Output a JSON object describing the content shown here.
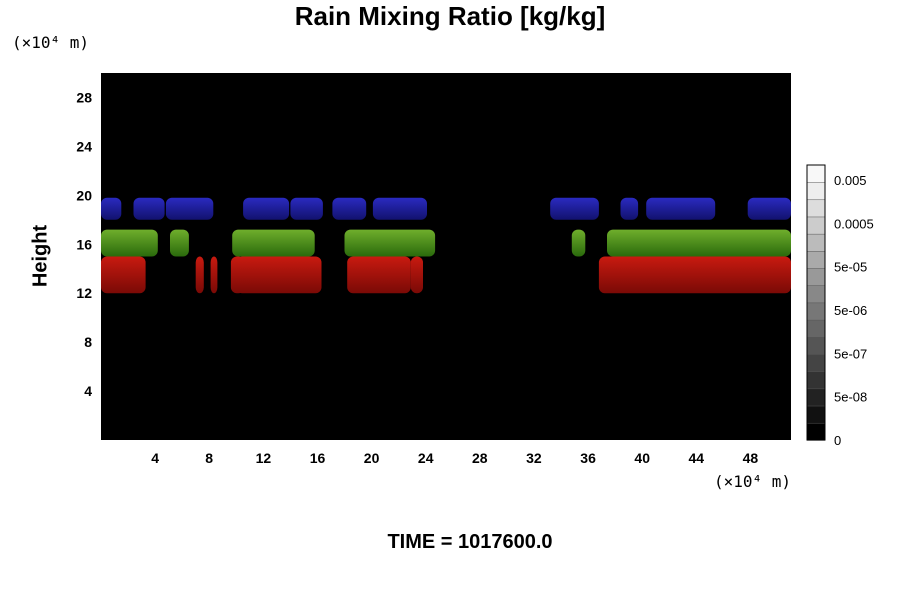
{
  "chart_data": {
    "type": "heatmap",
    "title": "Rain Mixing Ratio [kg/kg]",
    "ylabel": "Height",
    "y_unit": "(×10⁴ m)",
    "x_unit": "(×10⁴ m)",
    "footer": "TIME = 1017600.0",
    "x_ticks": [
      4,
      8,
      12,
      16,
      20,
      24,
      28,
      32,
      36,
      40,
      44,
      48
    ],
    "y_ticks": [
      4,
      8,
      12,
      16,
      20,
      24,
      28
    ],
    "xlim": [
      0,
      51
    ],
    "ylim": [
      0,
      30
    ],
    "colorbar": {
      "labels": [
        "0.005",
        "0.0005",
        "5e-05",
        "5e-06",
        "5e-07",
        "5e-08",
        "0"
      ],
      "level_colors": [
        "#000000",
        "#111111",
        "#222222",
        "#333333",
        "#444444",
        "#555555",
        "#666666",
        "#777777",
        "#888888",
        "#999999",
        "#aaaaaa",
        "#bbbbbb",
        "#cccccc",
        "#dddddd",
        "#eeeeee",
        "#f8f8f8"
      ]
    },
    "background_color": "#000000",
    "bands": [
      {
        "color": "#1a1a9a",
        "y_range": [
          18,
          19.8
        ],
        "x_segments": [
          [
            0,
            1.5
          ],
          [
            2.4,
            4.7
          ],
          [
            4.8,
            8.3
          ],
          [
            10.5,
            13.9
          ],
          [
            14,
            16.4
          ],
          [
            17.1,
            19.6
          ],
          [
            20.1,
            24.1
          ],
          [
            33.2,
            36.8
          ],
          [
            38.4,
            39.7
          ],
          [
            40.3,
            45.4
          ],
          [
            47.8,
            51
          ]
        ]
      },
      {
        "color": "#3a7a12",
        "y_range": [
          15,
          17.2
        ],
        "x_segments": [
          [
            0,
            4.2
          ],
          [
            5.1,
            6.5
          ],
          [
            9.7,
            15.8
          ],
          [
            18,
            24.7
          ],
          [
            34.8,
            35.8
          ],
          [
            37.4,
            51
          ]
        ]
      },
      {
        "color": "#a0110b",
        "y_range": [
          12,
          15
        ],
        "x_segments": [
          [
            0,
            3.3
          ],
          [
            7,
            7.6
          ],
          [
            8.1,
            8.6
          ],
          [
            9.6,
            10.6
          ],
          [
            10,
            16.3
          ],
          [
            18.2,
            22.9
          ],
          [
            22.9,
            23.8
          ],
          [
            36.8,
            51
          ]
        ]
      }
    ]
  }
}
